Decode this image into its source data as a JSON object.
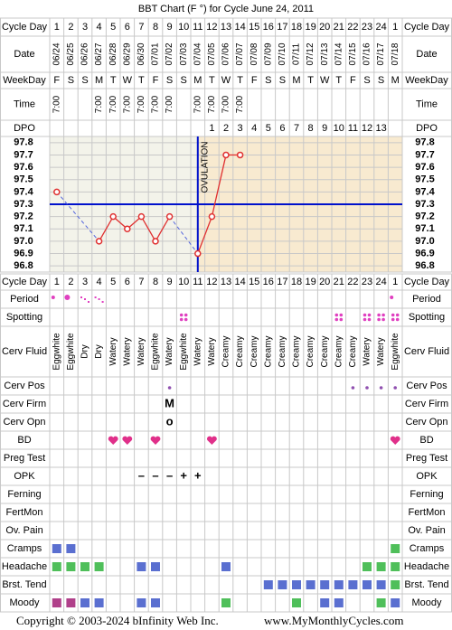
{
  "title": "BBT Chart (F °) for Cycle June 24, 2011",
  "labels": {
    "cycle_day": "Cycle Day",
    "date": "Date",
    "weekday": "WeekDay",
    "time": "Time",
    "dpo": "DPO"
  },
  "cycle_days": [
    1,
    2,
    3,
    4,
    5,
    6,
    7,
    8,
    9,
    10,
    11,
    12,
    13,
    14,
    15,
    16,
    17,
    18,
    19,
    20,
    21,
    22,
    23,
    24,
    1
  ],
  "dates": [
    "06/24",
    "06/25",
    "06/26",
    "06/27",
    "06/28",
    "06/29",
    "06/30",
    "07/01",
    "07/02",
    "07/03",
    "07/04",
    "07/05",
    "07/06",
    "07/07",
    "07/08",
    "07/09",
    "07/10",
    "07/11",
    "07/12",
    "07/13",
    "07/14",
    "07/15",
    "07/16",
    "07/17",
    "07/18"
  ],
  "weekdays": [
    "F",
    "S",
    "S",
    "M",
    "T",
    "W",
    "T",
    "F",
    "S",
    "S",
    "M",
    "T",
    "W",
    "T",
    "F",
    "S",
    "S",
    "M",
    "T",
    "W",
    "T",
    "F",
    "S",
    "S",
    "M"
  ],
  "times": [
    "7:00",
    null,
    null,
    "7:00",
    "7:00",
    "7:00",
    "7:00",
    "7:00",
    "7:00",
    null,
    "7:00",
    "7:00",
    "7:00",
    "7:00",
    null,
    null,
    null,
    null,
    null,
    null,
    null,
    null,
    null,
    null,
    null
  ],
  "dpo": [
    null,
    null,
    null,
    null,
    null,
    null,
    null,
    null,
    null,
    null,
    null,
    1,
    2,
    3,
    4,
    5,
    6,
    7,
    8,
    9,
    10,
    11,
    12,
    13,
    null
  ],
  "chart_data": {
    "type": "line",
    "series": [
      {
        "color": "#e03030",
        "values": [
          97.4,
          null,
          null,
          97.0,
          97.2,
          97.1,
          97.2,
          97.0,
          97.2,
          null,
          96.9,
          97.2,
          97.7,
          97.7,
          null,
          null,
          null,
          null,
          null,
          null,
          null,
          null,
          null,
          null,
          null
        ]
      }
    ],
    "gap_color": "#5566dd",
    "ylim": [
      96.75,
      97.85
    ],
    "yticks": [
      97.8,
      97.7,
      97.6,
      97.5,
      97.4,
      97.3,
      97.2,
      97.1,
      {
        "value": 97.0,
        "label": "97.0"
      },
      96.9,
      96.8
    ],
    "coverline": 97.3,
    "coverline_color": "#0011cc",
    "ovulation_day": 11,
    "annotation": "OVULATION"
  },
  "symptom_rows": [
    {
      "label": "Period",
      "marker": "dot",
      "color": "#e040c0",
      "cells": [
        2,
        3,
        1,
        1,
        null,
        null,
        null,
        null,
        null,
        null,
        null,
        null,
        null,
        null,
        null,
        null,
        null,
        null,
        null,
        null,
        null,
        null,
        null,
        null,
        2
      ]
    },
    {
      "label": "Spotting",
      "marker": "dots",
      "color": "#e040c0",
      "cells": [
        null,
        null,
        null,
        null,
        null,
        null,
        null,
        null,
        null,
        1,
        null,
        null,
        null,
        null,
        null,
        null,
        null,
        null,
        null,
        null,
        1,
        null,
        1,
        1,
        1
      ]
    },
    {
      "label": "Cerv Fluid",
      "marker": "text",
      "cells": [
        "Eggwhite",
        "Eggwhite",
        "Dry",
        "Dry",
        "Watery",
        "Watery",
        "Watery",
        "Eggwhite",
        "Watery",
        "Eggwhite",
        "Watery",
        "Watery",
        "Creamy",
        "Creamy",
        "Creamy",
        "Creamy",
        "Creamy",
        "Creamy",
        "Creamy",
        "Creamy",
        "Creamy",
        "Creamy",
        "Watery",
        "Watery",
        "Eggwhite"
      ]
    },
    {
      "label": "Cerv Pos",
      "marker": "pos",
      "color": "#9050b0",
      "cells": [
        null,
        null,
        null,
        null,
        null,
        null,
        null,
        null,
        1,
        null,
        null,
        null,
        null,
        null,
        null,
        null,
        null,
        null,
        null,
        null,
        null,
        1,
        1,
        1,
        1
      ]
    },
    {
      "label": "Cerv Firm",
      "marker": "text",
      "color": "#c050a0",
      "cells": [
        null,
        null,
        null,
        null,
        null,
        null,
        null,
        null,
        "M",
        null,
        null,
        null,
        null,
        null,
        null,
        null,
        null,
        null,
        null,
        null,
        null,
        null,
        null,
        null,
        null
      ]
    },
    {
      "label": "Cerv Opn",
      "marker": "text",
      "color": "#c050a0",
      "cells": [
        null,
        null,
        null,
        null,
        null,
        null,
        null,
        null,
        "o",
        null,
        null,
        null,
        null,
        null,
        null,
        null,
        null,
        null,
        null,
        null,
        null,
        null,
        null,
        null,
        null
      ]
    },
    {
      "label": "BD",
      "marker": "heart",
      "color": "#e0308a",
      "cells": [
        null,
        null,
        null,
        null,
        1,
        1,
        null,
        1,
        null,
        null,
        null,
        1,
        null,
        null,
        null,
        null,
        null,
        null,
        null,
        null,
        null,
        null,
        null,
        null,
        1
      ]
    },
    {
      "label": "Preg Test",
      "marker": "text",
      "cells": [
        null,
        null,
        null,
        null,
        null,
        null,
        null,
        null,
        null,
        null,
        null,
        null,
        null,
        null,
        null,
        null,
        null,
        null,
        null,
        null,
        null,
        null,
        null,
        null,
        null
      ]
    },
    {
      "label": "OPK",
      "marker": "text",
      "color": "#7a2fb0",
      "cells": [
        null,
        null,
        null,
        null,
        null,
        null,
        "–",
        "–",
        "–",
        "+",
        "+",
        null,
        null,
        null,
        null,
        null,
        null,
        null,
        null,
        null,
        null,
        null,
        null,
        null,
        null
      ]
    },
    {
      "label": "Ferning",
      "marker": "text",
      "cells": [
        null,
        null,
        null,
        null,
        null,
        null,
        null,
        null,
        null,
        null,
        null,
        null,
        null,
        null,
        null,
        null,
        null,
        null,
        null,
        null,
        null,
        null,
        null,
        null,
        null
      ]
    },
    {
      "label": "FertMon",
      "marker": "text",
      "cells": [
        null,
        null,
        null,
        null,
        null,
        null,
        null,
        null,
        null,
        null,
        null,
        null,
        null,
        null,
        null,
        null,
        null,
        null,
        null,
        null,
        null,
        null,
        null,
        null,
        null
      ]
    },
    {
      "label": "Ov. Pain",
      "marker": "text",
      "cells": [
        null,
        null,
        null,
        null,
        null,
        null,
        null,
        null,
        null,
        null,
        null,
        null,
        null,
        null,
        null,
        null,
        null,
        null,
        null,
        null,
        null,
        null,
        null,
        null,
        null
      ]
    },
    {
      "label": "Cramps",
      "marker": "square",
      "cells": [
        "#5a6fd0",
        "#5a6fd0",
        null,
        null,
        null,
        null,
        null,
        null,
        null,
        null,
        null,
        null,
        null,
        null,
        null,
        null,
        null,
        null,
        null,
        null,
        null,
        null,
        null,
        null,
        "#4fbf5a"
      ]
    },
    {
      "label": "Headache",
      "marker": "square",
      "cells": [
        "#4fbf5a",
        "#4fbf5a",
        "#4fbf5a",
        "#4fbf5a",
        null,
        null,
        "#5a6fd0",
        "#5a6fd0",
        null,
        null,
        null,
        null,
        "#5a6fd0",
        null,
        null,
        null,
        null,
        null,
        null,
        null,
        null,
        null,
        "#4fbf5a",
        "#4fbf5a",
        "#4fbf5a"
      ]
    },
    {
      "label": "Brst. Tend",
      "marker": "square",
      "cells": [
        null,
        null,
        null,
        null,
        null,
        null,
        null,
        null,
        null,
        null,
        null,
        null,
        null,
        null,
        null,
        "#5a6fd0",
        "#5a6fd0",
        "#5a6fd0",
        "#5a6fd0",
        "#5a6fd0",
        "#5a6fd0",
        "#5a6fd0",
        "#5a6fd0",
        "#5a6fd0",
        "#4fbf5a"
      ]
    },
    {
      "label": "Moody",
      "marker": "square",
      "cells": [
        "#b0408a",
        "#b0408a",
        "#5a6fd0",
        "#5a6fd0",
        null,
        null,
        "#5a6fd0",
        "#5a6fd0",
        null,
        null,
        null,
        null,
        "#4fbf5a",
        null,
        null,
        null,
        null,
        "#4fbf5a",
        null,
        "#5a6fd0",
        "#5a6fd0",
        null,
        null,
        "#4fbf5a",
        "#5a6fd0"
      ]
    }
  ],
  "copyright": "Copyright © 2003-2024 bInfinity Web Inc.",
  "site": "www.MyMonthlyCycles.com"
}
